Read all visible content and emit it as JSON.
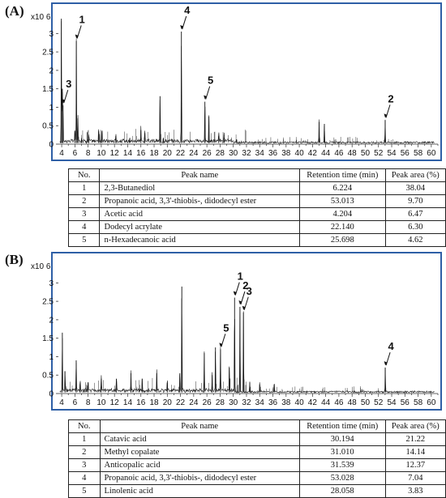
{
  "panels": [
    {
      "label": "(A)",
      "table": {
        "headers": [
          "No.",
          "Peak name",
          "Retention time (min)",
          "Peak area (%)"
        ],
        "rows": [
          [
            "1",
            "2,3-Butanediol",
            "6.224",
            "38.04"
          ],
          [
            "2",
            "Propanoic acid, 3,3'-thiobis-, didodecyl ester",
            "53.013",
            "9.70"
          ],
          [
            "3",
            "Acetic acid",
            "4.204",
            "6.47"
          ],
          [
            "4",
            "Dodecyl acrylate",
            "22.140",
            "6.30"
          ],
          [
            "5",
            "n-Hexadecanoic acid",
            "25.698",
            "4.62"
          ]
        ]
      }
    },
    {
      "label": "(B)",
      "table": {
        "headers": [
          "No.",
          "Peak name",
          "Retention time (min)",
          "Peak area (%)"
        ],
        "rows": [
          [
            "1",
            "Catavic acid",
            "30.194",
            "21.22"
          ],
          [
            "2",
            "Methyl copalate",
            "31.010",
            "14.14"
          ],
          [
            "3",
            "Anticopalic acid",
            "31.539",
            "12.37"
          ],
          [
            "4",
            "Propanoic acid, 3,3'-thiobis-, didodecyl ester",
            "53.028",
            "7.04"
          ],
          [
            "5",
            "Linolenic acid",
            "28.058",
            "3.83"
          ]
        ]
      }
    }
  ],
  "chart_data": [
    {
      "type": "line",
      "ylabel_multiplier": "x10 6",
      "xlim": [
        3.5,
        61
      ],
      "ylim": [
        0,
        3.6
      ],
      "xticks": [
        4,
        6,
        8,
        10,
        12,
        14,
        16,
        18,
        20,
        22,
        24,
        26,
        28,
        30,
        32,
        34,
        36,
        38,
        40,
        42,
        44,
        46,
        48,
        50,
        52,
        54,
        56,
        58,
        60
      ],
      "yticks": [
        0,
        0.5,
        1,
        1.5,
        2,
        2.5,
        3
      ],
      "peaks": [
        {
          "x": 3.95,
          "y": 3.4
        },
        {
          "x": 4.1,
          "y": 1.5
        },
        {
          "x": 4.204,
          "y": 1.05
        },
        {
          "x": 6.0,
          "y": 0.35
        },
        {
          "x": 6.224,
          "y": 2.8
        },
        {
          "x": 6.45,
          "y": 0.7
        },
        {
          "x": 7.0,
          "y": 0.12
        },
        {
          "x": 8.1,
          "y": 0.2
        },
        {
          "x": 9.6,
          "y": 0.35
        },
        {
          "x": 10.1,
          "y": 0.35
        },
        {
          "x": 12.2,
          "y": 0.22
        },
        {
          "x": 14.3,
          "y": 0.15
        },
        {
          "x": 16.0,
          "y": 0.38
        },
        {
          "x": 16.6,
          "y": 0.3
        },
        {
          "x": 18.9,
          "y": 1.3
        },
        {
          "x": 19.4,
          "y": 0.15
        },
        {
          "x": 22.14,
          "y": 3.05
        },
        {
          "x": 25.698,
          "y": 1.15
        },
        {
          "x": 26.3,
          "y": 0.75
        },
        {
          "x": 27.8,
          "y": 0.22
        },
        {
          "x": 28.6,
          "y": 0.18
        },
        {
          "x": 30.5,
          "y": 0.12
        },
        {
          "x": 43.0,
          "y": 0.6
        },
        {
          "x": 43.8,
          "y": 0.55
        },
        {
          "x": 53.013,
          "y": 0.65
        }
      ],
      "annotations": [
        {
          "text": "1",
          "x": 6.224
        },
        {
          "text": "2",
          "x": 53.013
        },
        {
          "text": "3",
          "x": 4.204
        },
        {
          "text": "4",
          "x": 22.14
        },
        {
          "text": "5",
          "x": 25.698
        }
      ]
    },
    {
      "type": "line",
      "ylabel_multiplier": "x10 6",
      "xlim": [
        3.5,
        61
      ],
      "ylim": [
        0,
        3.6
      ],
      "xticks": [
        4,
        6,
        8,
        10,
        12,
        14,
        16,
        18,
        20,
        22,
        24,
        26,
        28,
        30,
        32,
        34,
        36,
        38,
        40,
        42,
        44,
        46,
        48,
        50,
        52,
        54,
        56,
        58,
        60
      ],
      "yticks": [
        0,
        0.5,
        1,
        1.5,
        2,
        2.5,
        3
      ],
      "peaks": [
        {
          "x": 4.1,
          "y": 1.65
        },
        {
          "x": 4.5,
          "y": 0.6
        },
        {
          "x": 6.2,
          "y": 0.9
        },
        {
          "x": 6.8,
          "y": 0.3
        },
        {
          "x": 8.0,
          "y": 0.3
        },
        {
          "x": 10.0,
          "y": 0.4
        },
        {
          "x": 12.3,
          "y": 0.4
        },
        {
          "x": 14.5,
          "y": 0.55
        },
        {
          "x": 16.2,
          "y": 0.4
        },
        {
          "x": 18.4,
          "y": 0.55
        },
        {
          "x": 20.0,
          "y": 0.3
        },
        {
          "x": 21.9,
          "y": 0.55
        },
        {
          "x": 22.2,
          "y": 2.9
        },
        {
          "x": 25.6,
          "y": 1.1
        },
        {
          "x": 26.8,
          "y": 0.5
        },
        {
          "x": 27.3,
          "y": 1.25
        },
        {
          "x": 28.058,
          "y": 1.2
        },
        {
          "x": 29.4,
          "y": 0.7
        },
        {
          "x": 30.194,
          "y": 2.6
        },
        {
          "x": 31.01,
          "y": 2.35
        },
        {
          "x": 31.539,
          "y": 2.2
        },
        {
          "x": 32.5,
          "y": 0.3
        },
        {
          "x": 34.0,
          "y": 0.25
        },
        {
          "x": 36.2,
          "y": 0.25
        },
        {
          "x": 53.028,
          "y": 0.7
        }
      ],
      "annotations": [
        {
          "text": "1",
          "x": 30.194
        },
        {
          "text": "2",
          "x": 31.01
        },
        {
          "text": "3",
          "x": 31.539
        },
        {
          "text": "4",
          "x": 53.028
        },
        {
          "text": "5",
          "x": 28.058
        }
      ]
    }
  ]
}
